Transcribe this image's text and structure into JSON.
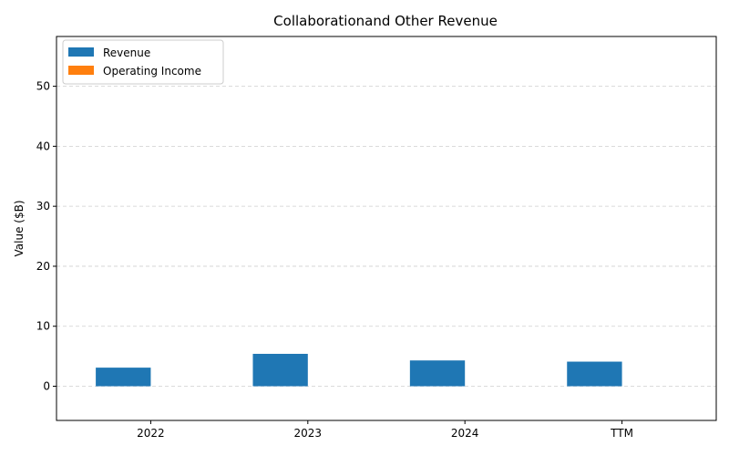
{
  "chart_data": {
    "type": "bar",
    "title": "Collaborationand Other Revenue",
    "xlabel": "",
    "ylabel": "Value ($B)",
    "categories": [
      "2022",
      "2023",
      "2024",
      "TTM"
    ],
    "series": [
      {
        "name": "Revenue",
        "values": [
          3.1,
          5.4,
          4.3,
          4.1
        ],
        "color": "#1f77b4"
      },
      {
        "name": "Operating Income",
        "values": [
          0,
          0,
          0,
          0
        ],
        "color": "#ff7f0e"
      }
    ],
    "ylim": [
      -5.7,
      58.3
    ],
    "yticks": [
      0,
      10,
      20,
      30,
      40,
      50
    ],
    "grid": true,
    "legend_position": "top-left"
  }
}
